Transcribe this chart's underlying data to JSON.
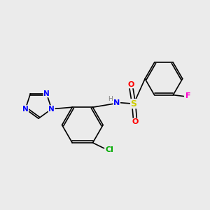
{
  "background_color": "#ebebeb",
  "bond_color": "#000000",
  "atom_colors": {
    "N": "#0000ff",
    "O": "#ff0000",
    "S": "#cccc00",
    "F": "#ff00cc",
    "Cl": "#00aa00",
    "C": "#000000",
    "H": "#808080"
  },
  "figsize": [
    3.0,
    3.0
  ],
  "dpi": 100
}
